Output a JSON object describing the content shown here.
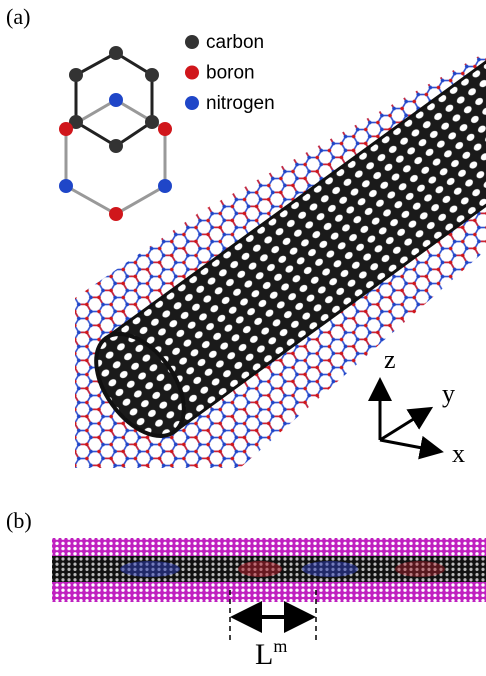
{
  "panel_a": {
    "label": "(a)",
    "legend": [
      {
        "label": "carbon",
        "color": "#333333"
      },
      {
        "label": "boron",
        "color": "#d0161b"
      },
      {
        "label": "nitrogen",
        "color": "#1f46c8"
      }
    ],
    "axes": {
      "z": "z",
      "y": "y",
      "x": "x"
    }
  },
  "panel_b": {
    "label": "(b)",
    "length_label": {
      "base": "L",
      "superscript": "m"
    }
  }
}
